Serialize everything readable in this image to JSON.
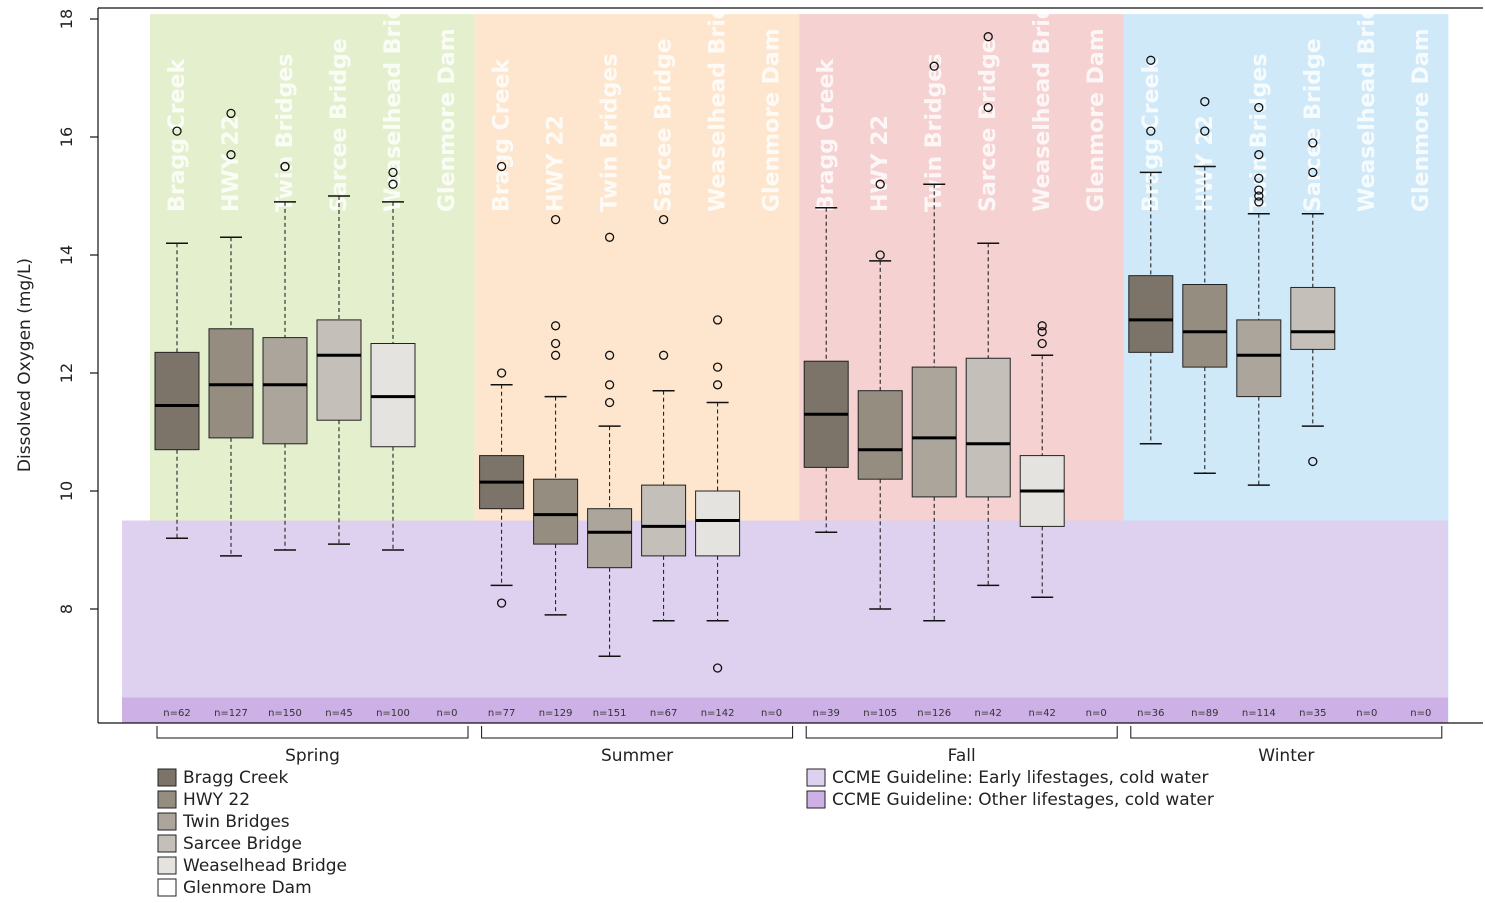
{
  "chart_data": {
    "type": "box",
    "title": "",
    "xlabel": "",
    "ylabel": "Dissolved Oxygen (mg/L)",
    "ylim": [
      6.2,
      18.1
    ],
    "yticks": [
      8,
      10,
      12,
      14,
      16,
      18
    ],
    "legend_position": "bottom-left",
    "sites": [
      "Bragg Creek",
      "HWY 22",
      "Twin Bridges",
      "Sarcee Bridge",
      "Weaselhead Bridge",
      "Glenmore Dam"
    ],
    "site_colors": [
      "#7c7468",
      "#968d81",
      "#aca59c",
      "#c4bfb9",
      "#e5e3df",
      "#ffffff"
    ],
    "seasons": [
      {
        "name": "Spring",
        "color": "#e4f0cd",
        "groups": [
          {
            "site": "Bragg Creek",
            "n": "n=62",
            "min": 9.2,
            "q1": 10.7,
            "median": 11.45,
            "q3": 12.35,
            "max": 14.2,
            "outliers": [
              16.1
            ]
          },
          {
            "site": "HWY 22",
            "n": "n=127",
            "min": 8.9,
            "q1": 10.9,
            "median": 11.8,
            "q3": 12.75,
            "max": 14.3,
            "outliers": [
              15.7,
              16.4
            ]
          },
          {
            "site": "Twin Bridges",
            "n": "n=150",
            "min": 9.0,
            "q1": 10.8,
            "median": 11.8,
            "q3": 12.6,
            "max": 14.9,
            "outliers": [
              15.5,
              15.5
            ]
          },
          {
            "site": "Sarcee Bridge",
            "n": "n=45",
            "min": 9.1,
            "q1": 11.2,
            "median": 12.3,
            "q3": 12.9,
            "max": 15.0,
            "outliers": []
          },
          {
            "site": "Weaselhead Bridge",
            "n": "n=100",
            "min": 9.0,
            "q1": 10.75,
            "median": 11.6,
            "q3": 12.5,
            "max": 14.9,
            "outliers": [
              15.2,
              15.4
            ]
          },
          {
            "site": "Glenmore Dam",
            "n": "n=0"
          }
        ]
      },
      {
        "name": "Summer",
        "color": "#fde6cd",
        "groups": [
          {
            "site": "Bragg Creek",
            "n": "n=77",
            "min": 8.4,
            "q1": 9.7,
            "median": 10.15,
            "q3": 10.6,
            "max": 11.8,
            "outliers": [
              12.0,
              8.1,
              15.5
            ]
          },
          {
            "site": "HWY 22",
            "n": "n=129",
            "min": 7.9,
            "q1": 9.1,
            "median": 9.6,
            "q3": 10.2,
            "max": 11.6,
            "outliers": [
              12.3,
              12.5,
              12.8,
              14.6
            ]
          },
          {
            "site": "Twin Bridges",
            "n": "n=151",
            "min": 7.2,
            "q1": 8.7,
            "median": 9.3,
            "q3": 9.7,
            "max": 11.1,
            "outliers": [
              11.5,
              11.8,
              12.3,
              14.3
            ]
          },
          {
            "site": "Sarcee Bridge",
            "n": "n=67",
            "min": 7.8,
            "q1": 8.9,
            "median": 9.4,
            "q3": 10.1,
            "max": 11.7,
            "outliers": [
              12.3,
              14.6
            ]
          },
          {
            "site": "Weaselhead Bridge",
            "n": "n=142",
            "min": 7.8,
            "q1": 8.9,
            "median": 9.5,
            "q3": 10.0,
            "max": 11.5,
            "outliers": [
              11.8,
              12.1,
              12.9,
              7.0
            ]
          },
          {
            "site": "Glenmore Dam",
            "n": "n=0"
          }
        ]
      },
      {
        "name": "Fall",
        "color": "#f5d1d1",
        "groups": [
          {
            "site": "Bragg Creek",
            "n": "n=39",
            "min": 9.3,
            "q1": 10.4,
            "median": 11.3,
            "q3": 12.2,
            "max": 14.8,
            "outliers": []
          },
          {
            "site": "HWY 22",
            "n": "n=105",
            "min": 8.0,
            "q1": 10.2,
            "median": 10.7,
            "q3": 11.7,
            "max": 13.9,
            "outliers": [
              14.0,
              15.2
            ]
          },
          {
            "site": "Twin Bridges",
            "n": "n=126",
            "min": 7.8,
            "q1": 9.9,
            "median": 10.9,
            "q3": 12.1,
            "max": 15.2,
            "outliers": [
              17.2
            ]
          },
          {
            "site": "Sarcee Bridge",
            "n": "n=42",
            "min": 8.4,
            "q1": 9.9,
            "median": 10.8,
            "q3": 12.25,
            "max": 14.2,
            "outliers": [
              16.5,
              17.7
            ]
          },
          {
            "site": "Weaselhead Bridge",
            "n": "n=42",
            "min": 8.2,
            "q1": 9.4,
            "median": 10.0,
            "q3": 10.6,
            "max": 12.3,
            "outliers": [
              12.5,
              12.7,
              12.8
            ]
          },
          {
            "site": "Glenmore Dam",
            "n": "n=0"
          }
        ]
      },
      {
        "name": "Winter",
        "color": "#cfe9f8",
        "groups": [
          {
            "site": "Bragg Creek",
            "n": "n=36",
            "min": 10.8,
            "q1": 12.35,
            "median": 12.9,
            "q3": 13.65,
            "max": 15.4,
            "outliers": [
              16.1,
              17.3
            ]
          },
          {
            "site": "HWY 22",
            "n": "n=89",
            "min": 10.3,
            "q1": 12.1,
            "median": 12.7,
            "q3": 13.5,
            "max": 15.5,
            "outliers": [
              16.1,
              16.6
            ]
          },
          {
            "site": "Twin Bridges",
            "n": "n=114",
            "min": 10.1,
            "q1": 11.6,
            "median": 12.3,
            "q3": 12.9,
            "max": 14.7,
            "outliers": [
              14.9,
              15.0,
              15.1,
              15.3,
              15.7,
              16.5
            ]
          },
          {
            "site": "Sarcee Bridge",
            "n": "n=35",
            "min": 11.1,
            "q1": 12.4,
            "median": 12.7,
            "q3": 13.45,
            "max": 14.7,
            "outliers": [
              15.4,
              15.9,
              10.5
            ]
          },
          {
            "site": "Weaselhead Bridge",
            "n": "n=0"
          },
          {
            "site": "Glenmore Dam",
            "n": "n=0"
          }
        ]
      }
    ],
    "guidelines": [
      {
        "name": "CCME Guideline: Early lifestages, cold water",
        "color": "#ded1f0",
        "upper": 9.5
      },
      {
        "name": "CCME Guideline: Other lifestages, cold water",
        "color": "#cdb0e6",
        "upper": 6.5
      }
    ]
  }
}
